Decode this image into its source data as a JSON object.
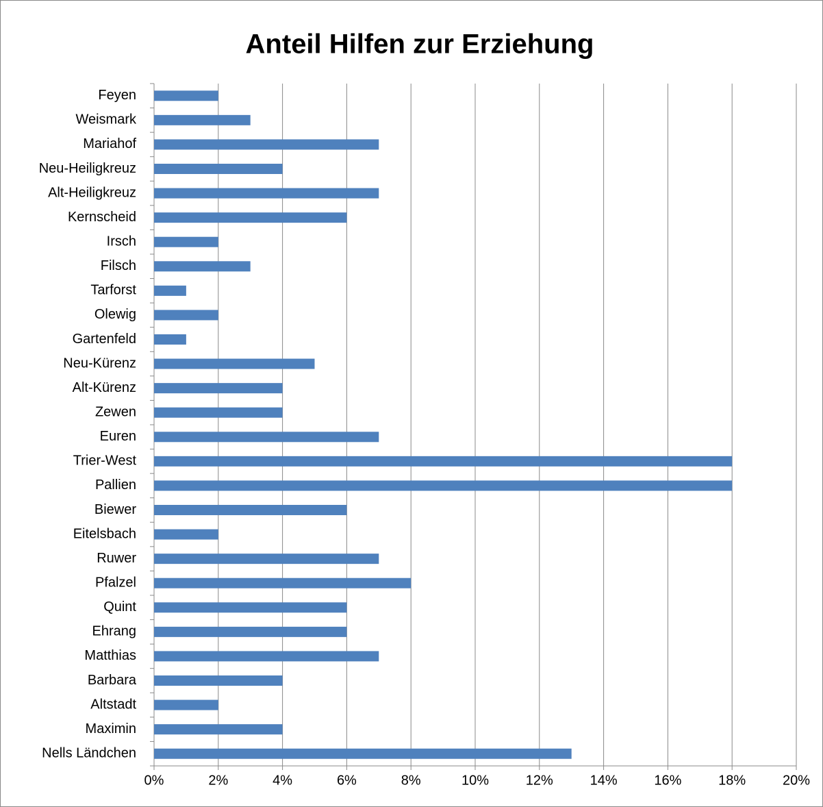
{
  "chart_data": {
    "type": "bar",
    "orientation": "horizontal",
    "title": "Anteil Hilfen zur Erziehung",
    "categories": [
      "Feyen",
      "Weismark",
      "Mariahof",
      "Neu-Heiligkreuz",
      "Alt-Heiligkreuz",
      "Kernscheid",
      "Irsch",
      "Filsch",
      "Tarforst",
      "Olewig",
      "Gartenfeld",
      "Neu-Kürenz",
      "Alt-Kürenz",
      "Zewen",
      "Euren",
      "Trier-West",
      "Pallien",
      "Biewer",
      "Eitelsbach",
      "Ruwer",
      "Pfalzel",
      "Quint",
      "Ehrang",
      "Matthias",
      "Barbara",
      "Altstadt",
      "Maximin",
      "Nells Ländchen"
    ],
    "values": [
      2,
      3,
      7,
      4,
      7,
      6,
      2,
      3,
      1,
      2,
      1,
      5,
      4,
      4,
      7,
      18,
      18,
      6,
      2,
      7,
      8,
      6,
      6,
      7,
      4,
      2,
      4,
      13
    ],
    "color": "#4f81bd",
    "xlim": [
      0,
      20
    ],
    "xticks": [
      {
        "value": 0,
        "label": "0%"
      },
      {
        "value": 2,
        "label": "2%"
      },
      {
        "value": 4,
        "label": "4%"
      },
      {
        "value": 6,
        "label": "6%"
      },
      {
        "value": 8,
        "label": "8%"
      },
      {
        "value": 10,
        "label": "10%"
      },
      {
        "value": 12,
        "label": "12%"
      },
      {
        "value": 14,
        "label": "14%"
      },
      {
        "value": 16,
        "label": "16%"
      },
      {
        "value": 18,
        "label": "18%"
      },
      {
        "value": 20,
        "label": "20%"
      }
    ],
    "grid": true
  }
}
